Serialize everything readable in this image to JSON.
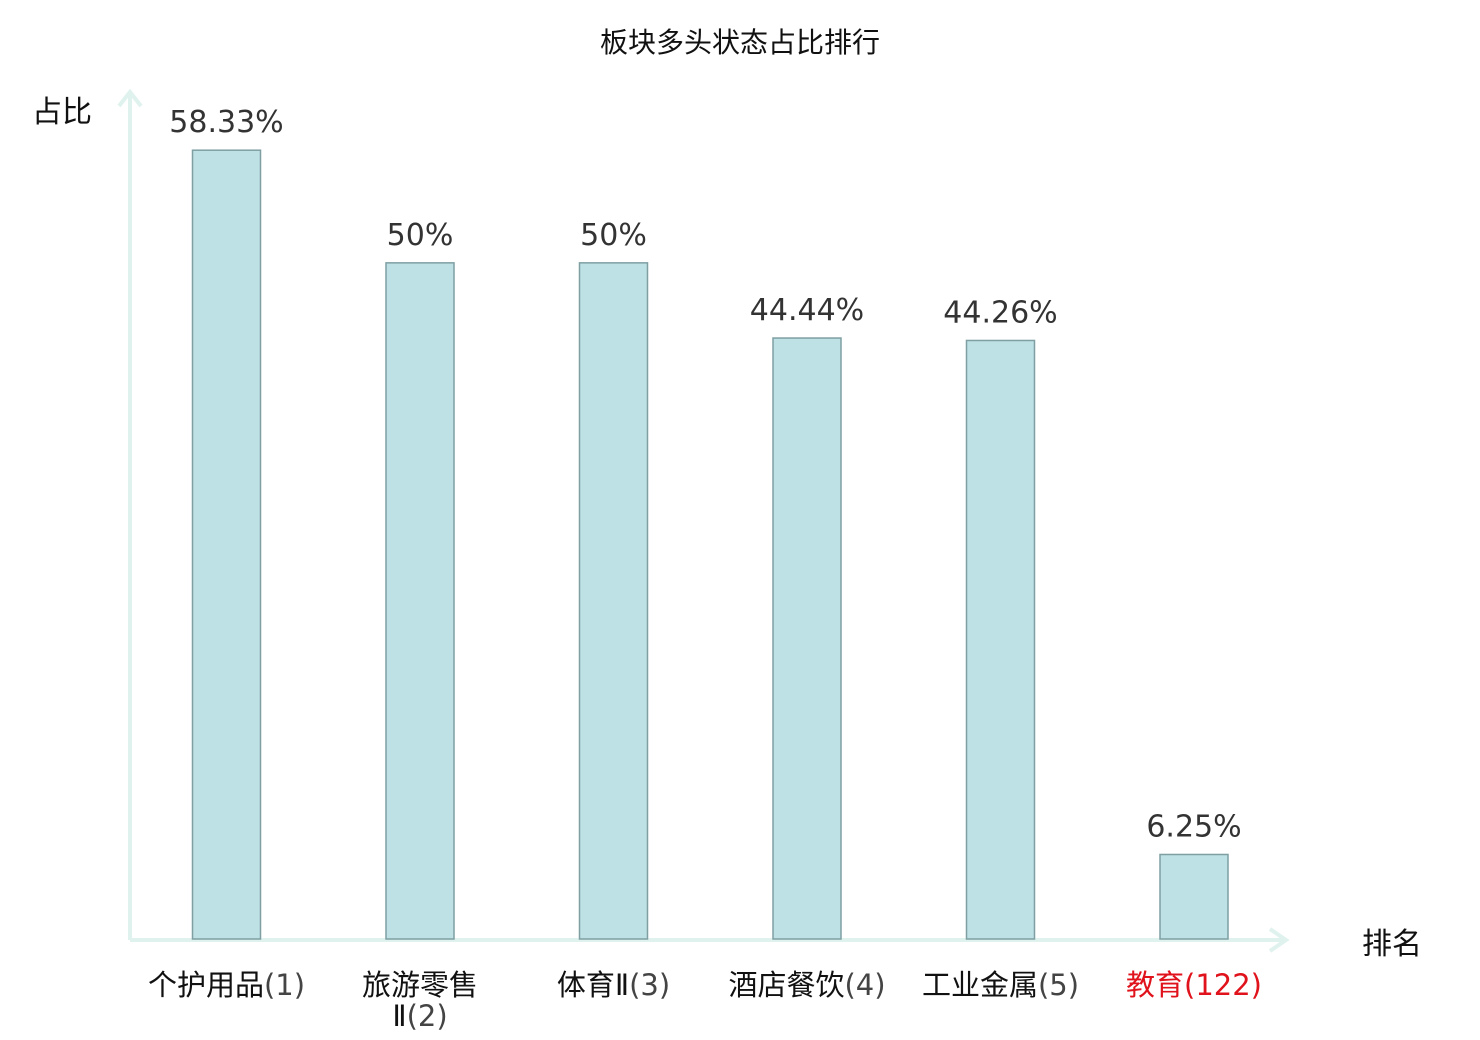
{
  "chart_data": {
    "type": "bar",
    "title": "板块多头状态占比排行",
    "ylabel": "占比",
    "xlabel": "排名",
    "ylim": [
      0,
      65
    ],
    "grid": false,
    "categories": [
      {
        "name": "个护用品",
        "rank": "(1)",
        "highlight": false
      },
      {
        "name": "旅游零售Ⅱ",
        "rank": "(2)",
        "highlight": false
      },
      {
        "name": "体育Ⅱ",
        "rank": "(3)",
        "highlight": false
      },
      {
        "name": "酒店餐饮",
        "rank": "(4)",
        "highlight": false
      },
      {
        "name": "工业金属",
        "rank": "(5)",
        "highlight": false
      },
      {
        "name": "教育",
        "rank": "(122)",
        "highlight": true
      }
    ],
    "values": [
      58.33,
      50,
      50,
      44.44,
      44.26,
      6.25
    ],
    "value_labels": [
      "58.33%",
      "50%",
      "50%",
      "44.44%",
      "44.26%",
      "6.25%"
    ],
    "colors": {
      "bar_fill": "#bde1e4",
      "bar_stroke": "#7f9fa3",
      "axis": "#dff2ee",
      "text": "#333333",
      "label_text": "#111111",
      "highlight": "#e0121b"
    }
  }
}
